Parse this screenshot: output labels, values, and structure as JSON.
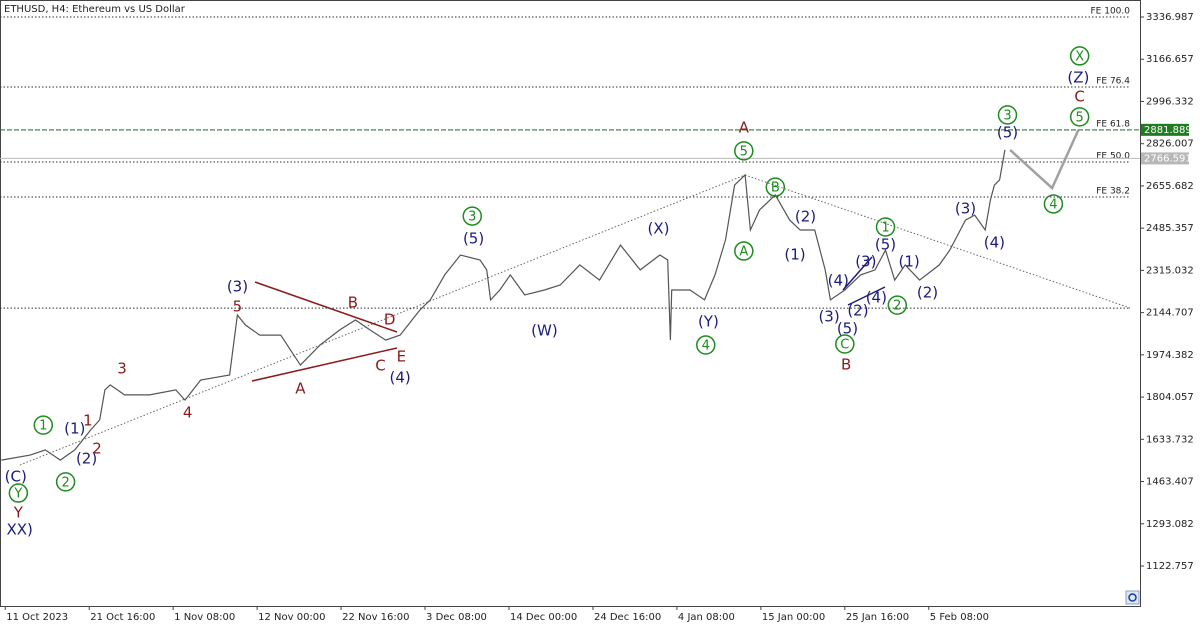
{
  "chart_data": {
    "type": "line",
    "title": "ETHUSD, H4:  Ethereum vs US Dollar",
    "color": "#555555",
    "xlim": [
      -4,
      865
    ],
    "xticks": [
      {
        "value": 0,
        "label": "11 Oct 2023"
      },
      {
        "value": 64,
        "label": "21 Oct 16:00"
      },
      {
        "value": 128,
        "label": "1 Nov 08:00"
      },
      {
        "value": 192,
        "label": "12 Nov 00:00"
      },
      {
        "value": 256,
        "label": "22 Nov 16:00"
      },
      {
        "value": 320,
        "label": "3 Dec 08:00"
      },
      {
        "value": 384,
        "label": "14 Dec 00:00"
      },
      {
        "value": 448,
        "label": "24 Dec 16:00"
      },
      {
        "value": 512,
        "label": "4 Jan 08:00"
      },
      {
        "value": 576,
        "label": "15 Jan 00:00"
      },
      {
        "value": 640,
        "label": "25 Jan 16:00"
      },
      {
        "value": 704,
        "label": "5 Feb 08:00"
      }
    ],
    "ylim": [
      961.43,
      3405.55
    ],
    "yticks": [
      3336.987,
      3166.657,
      2996.332,
      2826.007,
      2655.682,
      2485.357,
      2315.032,
      2144.707,
      1974.382,
      1804.057,
      1633.732,
      1463.407,
      1293.082,
      1122.757
    ],
    "x": [
      -3,
      19,
      30.5,
      42,
      53,
      65,
      72,
      76,
      80,
      91,
      110,
      130,
      137,
      149,
      171,
      177,
      183,
      194,
      210,
      225,
      240,
      255,
      267,
      278,
      290,
      301,
      316,
      324,
      335,
      347,
      362,
      367,
      370,
      377,
      385,
      396,
      411,
      423,
      438,
      453,
      469,
      484,
      499,
      505,
      507,
      508,
      522,
      533,
      541,
      549,
      556,
      564,
      568,
      575,
      587,
      598,
      606,
      617,
      625,
      629,
      640,
      652,
      663,
      671,
      678,
      686,
      697,
      712,
      720,
      732,
      739,
      747,
      751,
      754,
      758,
      762
    ],
    "values": [
      1550,
      1570,
      1591,
      1550,
      1591,
      1671,
      1712,
      1833,
      1853,
      1813,
      1813,
      1833,
      1792,
      1873,
      1893,
      2135,
      2095,
      2054,
      2054,
      1933,
      2014,
      2075,
      2115,
      2075,
      2034,
      2054,
      2155,
      2196,
      2297,
      2377,
      2357,
      2317,
      2196,
      2236,
      2297,
      2216,
      2236,
      2256,
      2337,
      2276,
      2417,
      2317,
      2377,
      2357,
      2034,
      2236,
      2236,
      2196,
      2297,
      2438,
      2659,
      2700,
      2478,
      2559,
      2619,
      2518,
      2478,
      2478,
      2317,
      2196,
      2236,
      2297,
      2317,
      2397,
      2276,
      2337,
      2276,
      2337,
      2397,
      2518,
      2538,
      2478,
      2599,
      2659,
      2680,
      2801
    ],
    "projection": {
      "color": "#a0a0a0",
      "x": [
        766,
        798,
        818
      ],
      "values": [
        2801,
        2647,
        2881
      ]
    },
    "levels": [
      {
        "label": "FE 100.0",
        "value": 3336.987
      },
      {
        "label": "FE 76.4",
        "value": 3054.7
      },
      {
        "label": "FE 61.8",
        "value": 2881.2
      },
      {
        "label": "FE 50.0",
        "value": 2752
      },
      {
        "label": "FE 38.2",
        "value": 2611
      },
      {
        "value": 2163
      }
    ],
    "price_lines": [
      {
        "value": 2881.889,
        "color": "#1e7d1e"
      },
      {
        "value": 2766.591,
        "color": "#b8b8b8"
      }
    ],
    "annotations": [
      {
        "text": "1",
        "style": "circle",
        "color": "#1e8c1e",
        "x": 29,
        "y": 1691
      },
      {
        "text": "2",
        "style": "circle",
        "color": "#1e8c1e",
        "x": 46,
        "y": 1462
      },
      {
        "text": "Y",
        "style": "circle",
        "color": "#1e8c1e",
        "x": 10,
        "y": 1417
      },
      {
        "text": "3",
        "style": "circle",
        "color": "#1e8c1e",
        "x": 356,
        "y": 2534
      },
      {
        "text": "4",
        "style": "circle",
        "color": "#1e8c1e",
        "x": 534,
        "y": 2014
      },
      {
        "text": "5",
        "style": "circle",
        "color": "#1e8c1e",
        "x": 563,
        "y": 2797
      },
      {
        "text": "A",
        "style": "circle",
        "color": "#1e8c1e",
        "x": 563,
        "y": 2393
      },
      {
        "text": "B",
        "style": "circle",
        "color": "#1e8c1e",
        "x": 587,
        "y": 2651
      },
      {
        "text": "C",
        "style": "circle",
        "color": "#1e8c1e",
        "x": 640,
        "y": 2018
      },
      {
        "text": "1",
        "style": "circle",
        "color": "#1e8c1e",
        "x": 671,
        "y": 2490
      },
      {
        "text": "2",
        "style": "circle",
        "color": "#1e8c1e",
        "x": 680,
        "y": 2175
      },
      {
        "text": "3",
        "style": "circle",
        "color": "#1e8c1e",
        "x": 764,
        "y": 2942
      },
      {
        "text": "4",
        "style": "circle",
        "color": "#1e8c1e",
        "x": 799,
        "y": 2583
      },
      {
        "text": "5",
        "style": "circle",
        "color": "#1e8c1e",
        "x": 819,
        "y": 2934
      },
      {
        "text": "X",
        "style": "circle",
        "color": "#1e8c1e",
        "x": 819,
        "y": 3180
      },
      {
        "text": "(C)",
        "color": "#1c1c7c",
        "x": 8,
        "y": 1482
      },
      {
        "text": "(1)",
        "color": "#1c1c7c",
        "x": 53,
        "y": 1675
      },
      {
        "text": "(2)",
        "color": "#1c1c7c",
        "x": 62,
        "y": 1554
      },
      {
        "text": "XX)",
        "color": "#1c1c7c",
        "x": 11,
        "y": 1268
      },
      {
        "text": "(3)",
        "color": "#1c1c7c",
        "x": 177,
        "y": 2248
      },
      {
        "text": "(4)",
        "color": "#1c1c7c",
        "x": 301,
        "y": 1881
      },
      {
        "text": "(5)",
        "color": "#1c1c7c",
        "x": 357,
        "y": 2442
      },
      {
        "text": "(W)",
        "color": "#1c1c7c",
        "x": 411,
        "y": 2071
      },
      {
        "text": "(X)",
        "color": "#1c1c7c",
        "x": 498,
        "y": 2482
      },
      {
        "text": "(Y)",
        "color": "#1c1c7c",
        "x": 536,
        "y": 2107
      },
      {
        "text": "(2)",
        "color": "#1c1c7c",
        "x": 610,
        "y": 2530
      },
      {
        "text": "(1)",
        "color": "#1c1c7c",
        "x": 602,
        "y": 2377
      },
      {
        "text": "(3)",
        "color": "#1c1c7c",
        "x": 628,
        "y": 2127
      },
      {
        "text": "(5)",
        "color": "#1c1c7c",
        "x": 642,
        "y": 2079
      },
      {
        "text": "(4)",
        "color": "#1c1c7c",
        "x": 635,
        "y": 2272
      },
      {
        "text": "(3)",
        "color": "#1c1c7c",
        "x": 656,
        "y": 2349
      },
      {
        "text": "(2)",
        "color": "#1c1c7c",
        "x": 650,
        "y": 2151
      },
      {
        "text": "(4)",
        "color": "#1c1c7c",
        "x": 664,
        "y": 2204
      },
      {
        "text": "(5)",
        "color": "#1c1c7c",
        "x": 671,
        "y": 2417
      },
      {
        "text": "(1)",
        "color": "#1c1c7c",
        "x": 689,
        "y": 2349
      },
      {
        "text": "(2)",
        "color": "#1c1c7c",
        "x": 703,
        "y": 2224
      },
      {
        "text": "(3)",
        "color": "#1c1c7c",
        "x": 732,
        "y": 2563
      },
      {
        "text": "(4)",
        "color": "#1c1c7c",
        "x": 754,
        "y": 2425
      },
      {
        "text": "(5)",
        "color": "#1c1c7c",
        "x": 764,
        "y": 2869
      },
      {
        "text": "(Z)",
        "color": "#1c1c7c",
        "x": 818,
        "y": 3091
      },
      {
        "text": "1",
        "color": "#8b1a1a",
        "x": 63,
        "y": 1708
      },
      {
        "text": "2",
        "color": "#8b1a1a",
        "x": 70,
        "y": 1595
      },
      {
        "text": "Y",
        "color": "#8b1a1a",
        "x": 10,
        "y": 1337
      },
      {
        "text": "3",
        "color": "#8b1a1a",
        "x": 89,
        "y": 1917
      },
      {
        "text": "4",
        "color": "#8b1a1a",
        "x": 139,
        "y": 1740
      },
      {
        "text": "5",
        "color": "#8b1a1a",
        "x": 177,
        "y": 2167
      },
      {
        "text": "A",
        "color": "#8b1a1a",
        "x": 225,
        "y": 1837
      },
      {
        "text": "B",
        "color": "#8b1a1a",
        "x": 265,
        "y": 2183
      },
      {
        "text": "C",
        "color": "#8b1a1a",
        "x": 286,
        "y": 1929
      },
      {
        "text": "D",
        "color": "#8b1a1a",
        "x": 293,
        "y": 2115
      },
      {
        "text": "E",
        "color": "#8b1a1a",
        "x": 302,
        "y": 1966
      },
      {
        "text": "A",
        "color": "#8b1a1a",
        "x": 563,
        "y": 2889
      },
      {
        "text": "B",
        "color": "#8b1a1a",
        "x": 641,
        "y": 1933
      },
      {
        "text": "C",
        "color": "#8b1a1a",
        "x": 819,
        "y": 3014
      }
    ]
  }
}
